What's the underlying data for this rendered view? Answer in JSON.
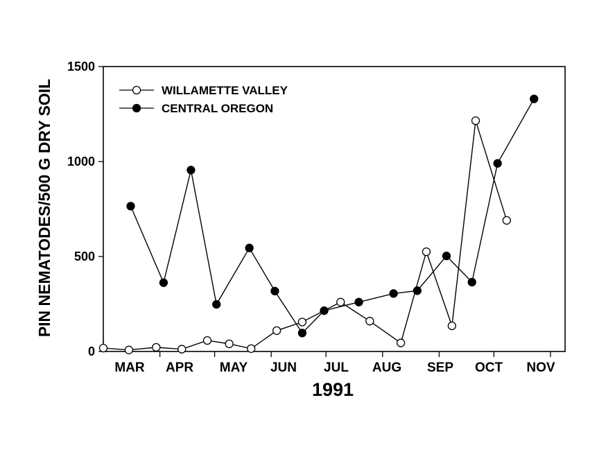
{
  "chart_data": {
    "type": "line",
    "xlabel": "1991",
    "ylabel": "PIN NEMATODES/500 G DRY SOIL",
    "ylim": [
      0,
      1500
    ],
    "yticks": [
      0,
      500,
      1000,
      1500
    ],
    "month_labels": [
      "MAR",
      "APR",
      "MAY",
      "JUN",
      "JUL",
      "AUG",
      "SEP",
      "OCT",
      "NOV"
    ],
    "legend_position": "top-left",
    "grid": false,
    "series": [
      {
        "name": "WILLAMETTE VALLEY",
        "marker": "open-circle",
        "points": [
          [
            "Mar 1",
            18
          ],
          [
            "Mar 15",
            8
          ],
          [
            "Mar 30",
            22
          ],
          [
            "Apr 13",
            12
          ],
          [
            "Apr 27",
            58
          ],
          [
            "May 9",
            40
          ],
          [
            "May 21",
            15
          ],
          [
            "Jun 4",
            110
          ],
          [
            "Jun 18",
            155
          ],
          [
            "Jul 9",
            260
          ],
          [
            "Jul 25",
            160
          ],
          [
            "Aug 11",
            45
          ],
          [
            "Aug 25",
            525
          ],
          [
            "Sep 8",
            135
          ],
          [
            "Sep 21",
            1215
          ],
          [
            "Oct 8",
            690
          ]
        ]
      },
      {
        "name": "CENTRAL OREGON",
        "marker": "filled-circle",
        "points": [
          [
            "Mar 16",
            765
          ],
          [
            "Apr 3",
            362
          ],
          [
            "Apr 18",
            955
          ],
          [
            "May 2",
            248
          ],
          [
            "May 20",
            545
          ],
          [
            "Jun 3",
            318
          ],
          [
            "Jun 18",
            97
          ],
          [
            "Jun 30",
            215
          ],
          [
            "Jul 19",
            260
          ],
          [
            "Aug 7",
            305
          ],
          [
            "Aug 20",
            320
          ],
          [
            "Sep 5",
            503
          ],
          [
            "Sep 19",
            365
          ],
          [
            "Oct 3",
            990
          ],
          [
            "Oct 23",
            1330
          ]
        ]
      }
    ]
  }
}
